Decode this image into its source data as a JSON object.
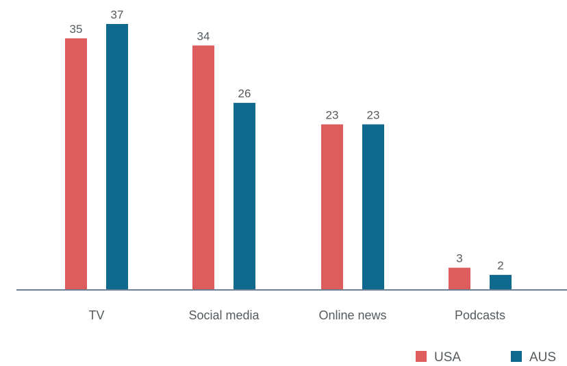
{
  "chart_data": {
    "type": "bar",
    "categories": [
      "TV",
      "Social media",
      "Online news",
      "Podcasts"
    ],
    "series": [
      {
        "name": "USA",
        "color": "#dd5d5c",
        "values": [
          35,
          34,
          23,
          3
        ]
      },
      {
        "name": "AUS",
        "color": "#0f688e",
        "values": [
          37,
          26,
          23,
          2
        ]
      }
    ],
    "title": "",
    "xlabel": "",
    "ylabel": "",
    "ylim": [
      0,
      37
    ],
    "grid": false,
    "legend_position": "bottom-right",
    "axis_color": "#6d7f93"
  }
}
